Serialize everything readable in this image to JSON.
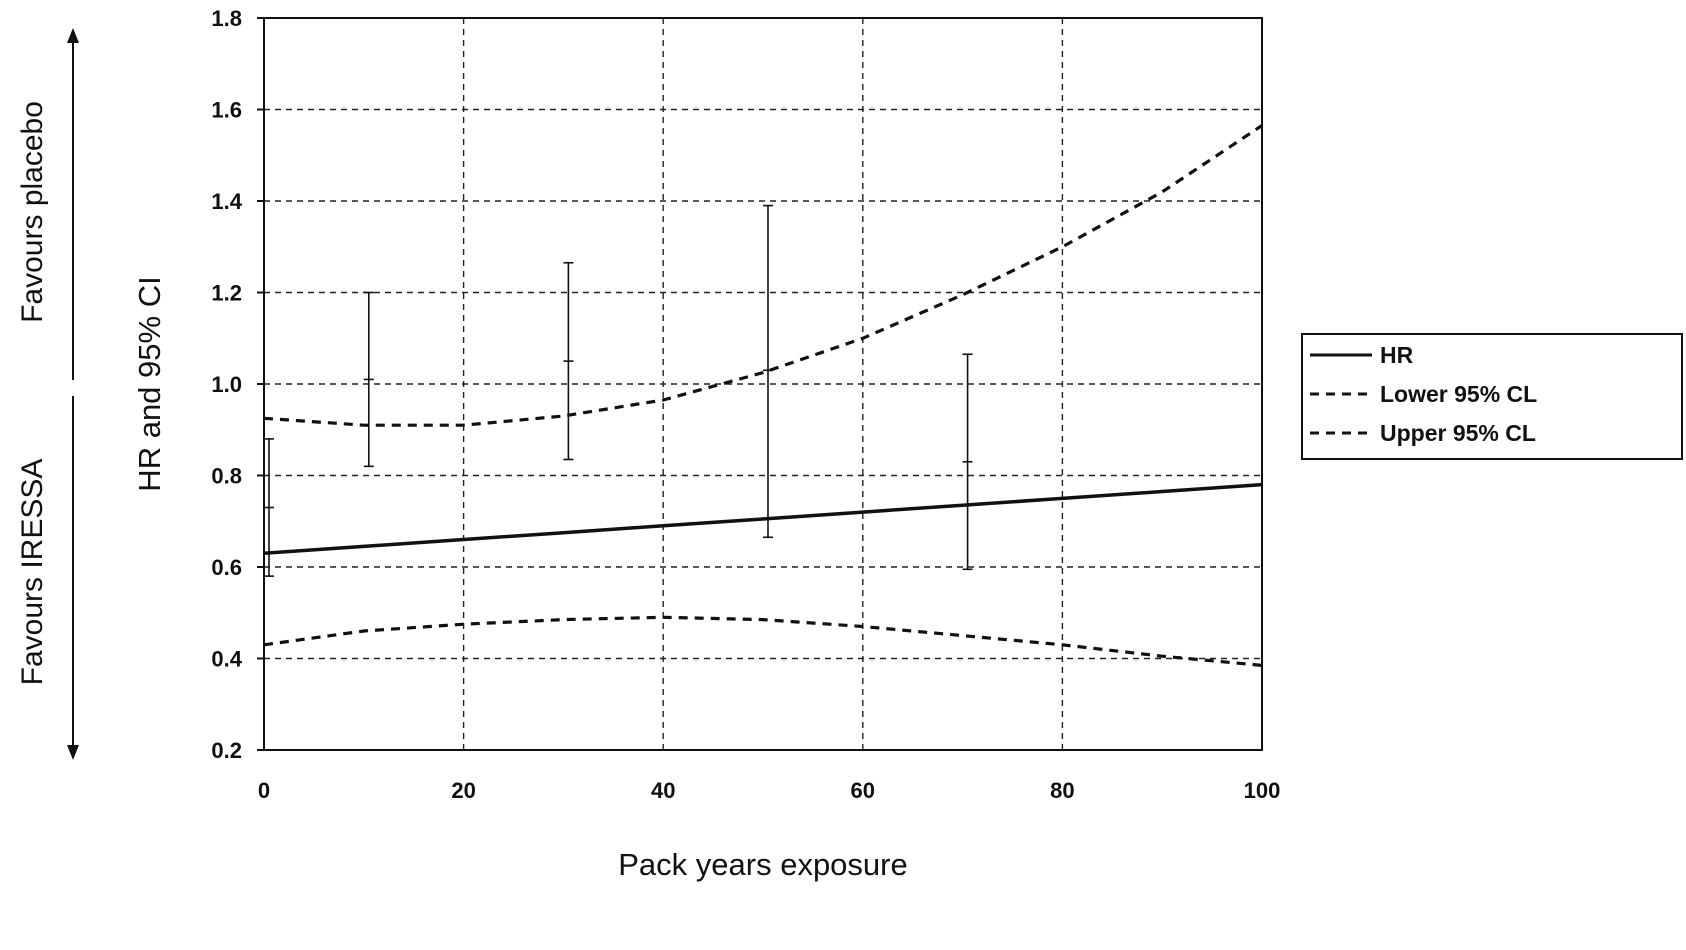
{
  "chart_data": {
    "type": "line",
    "title": "",
    "xlabel": "Pack years exposure",
    "ylabel": "HR and 95% CI",
    "xlim": [
      0,
      100
    ],
    "ylim": [
      0.2,
      1.8
    ],
    "x_ticks": [
      "0",
      "20",
      "40",
      "60",
      "80",
      "100"
    ],
    "y_ticks": [
      "0.2",
      "0.4",
      "0.6",
      "0.8",
      "1.0",
      "1.2",
      "1.4",
      "1.6",
      "1.8"
    ],
    "grid": true,
    "legend_position": "right",
    "side_labels": {
      "upper": "Favours placebo",
      "lower": "Favours IRESSA"
    },
    "series": [
      {
        "name": "HR",
        "style": "solid",
        "x": [
          0,
          10,
          20,
          30,
          40,
          50,
          60,
          70,
          80,
          90,
          100
        ],
        "y": [
          0.63,
          0.645,
          0.66,
          0.675,
          0.69,
          0.705,
          0.72,
          0.735,
          0.75,
          0.765,
          0.78
        ]
      },
      {
        "name": "Lower 95% CL",
        "style": "dashed",
        "x": [
          0,
          10,
          20,
          30,
          40,
          50,
          60,
          70,
          80,
          90,
          100
        ],
        "y": [
          0.43,
          0.46,
          0.475,
          0.485,
          0.49,
          0.485,
          0.47,
          0.45,
          0.43,
          0.405,
          0.385
        ]
      },
      {
        "name": "Upper 95% CL",
        "style": "dashed",
        "x": [
          0,
          10,
          20,
          30,
          40,
          50,
          60,
          70,
          80,
          90,
          100
        ],
        "y": [
          0.925,
          0.91,
          0.91,
          0.93,
          0.965,
          1.025,
          1.1,
          1.195,
          1.3,
          1.42,
          1.565
        ]
      }
    ],
    "error_bars": [
      {
        "x": 0.5,
        "mid": 0.73,
        "low": 0.58,
        "high": 0.88
      },
      {
        "x": 10.5,
        "mid": 1.01,
        "low": 0.82,
        "high": 1.2
      },
      {
        "x": 30.5,
        "mid": 1.05,
        "low": 0.835,
        "high": 1.265
      },
      {
        "x": 50.5,
        "mid": 1.03,
        "low": 0.665,
        "high": 1.39
      },
      {
        "x": 70.5,
        "mid": 0.83,
        "low": 0.595,
        "high": 1.065
      }
    ]
  }
}
